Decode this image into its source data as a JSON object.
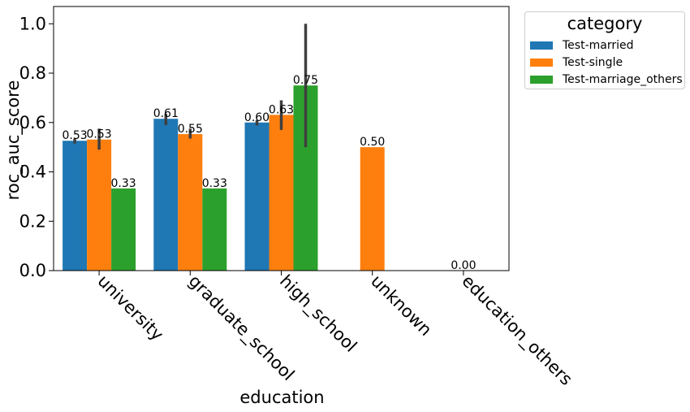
{
  "chart_data": {
    "type": "bar",
    "xlabel": "education",
    "ylabel": "roc_auc_score",
    "categories": [
      "university",
      "graduate_school",
      "high_school",
      "unknown",
      "education_others"
    ],
    "ylim": [
      0,
      1.07
    ],
    "yticks": [
      "0.0",
      "0.2",
      "0.4",
      "0.6",
      "0.8",
      "1.0"
    ],
    "legend": {
      "title": "category",
      "placement": "outside-top-right"
    },
    "series": [
      {
        "name": "Test-married",
        "color": "#1f77b4",
        "values": [
          0.526,
          0.615,
          0.6,
          null,
          null
        ],
        "labels": [
          "0.53",
          "0.61",
          "0.60",
          null,
          null
        ],
        "err": [
          [
            0.515,
            0.535
          ],
          [
            0.59,
            0.635
          ],
          [
            0.588,
            0.61
          ],
          null,
          null
        ]
      },
      {
        "name": "Test-single",
        "color": "#ff7f0e",
        "values": [
          0.531,
          0.553,
          0.631,
          0.5,
          0.0
        ],
        "labels": [
          "0.53",
          "0.55",
          "0.63",
          "0.50",
          "0.00"
        ],
        "err": [
          [
            0.49,
            0.575
          ],
          [
            0.535,
            0.575
          ],
          [
            0.57,
            0.69
          ],
          null,
          null
        ]
      },
      {
        "name": "Test-marriage_others",
        "color": "#2ca02c",
        "values": [
          0.333,
          0.333,
          0.75,
          null,
          null
        ],
        "labels": [
          "0.33",
          "0.33",
          "0.75",
          null,
          null
        ],
        "err": [
          null,
          null,
          [
            0.5,
            1.0
          ],
          null,
          null
        ]
      }
    ]
  }
}
